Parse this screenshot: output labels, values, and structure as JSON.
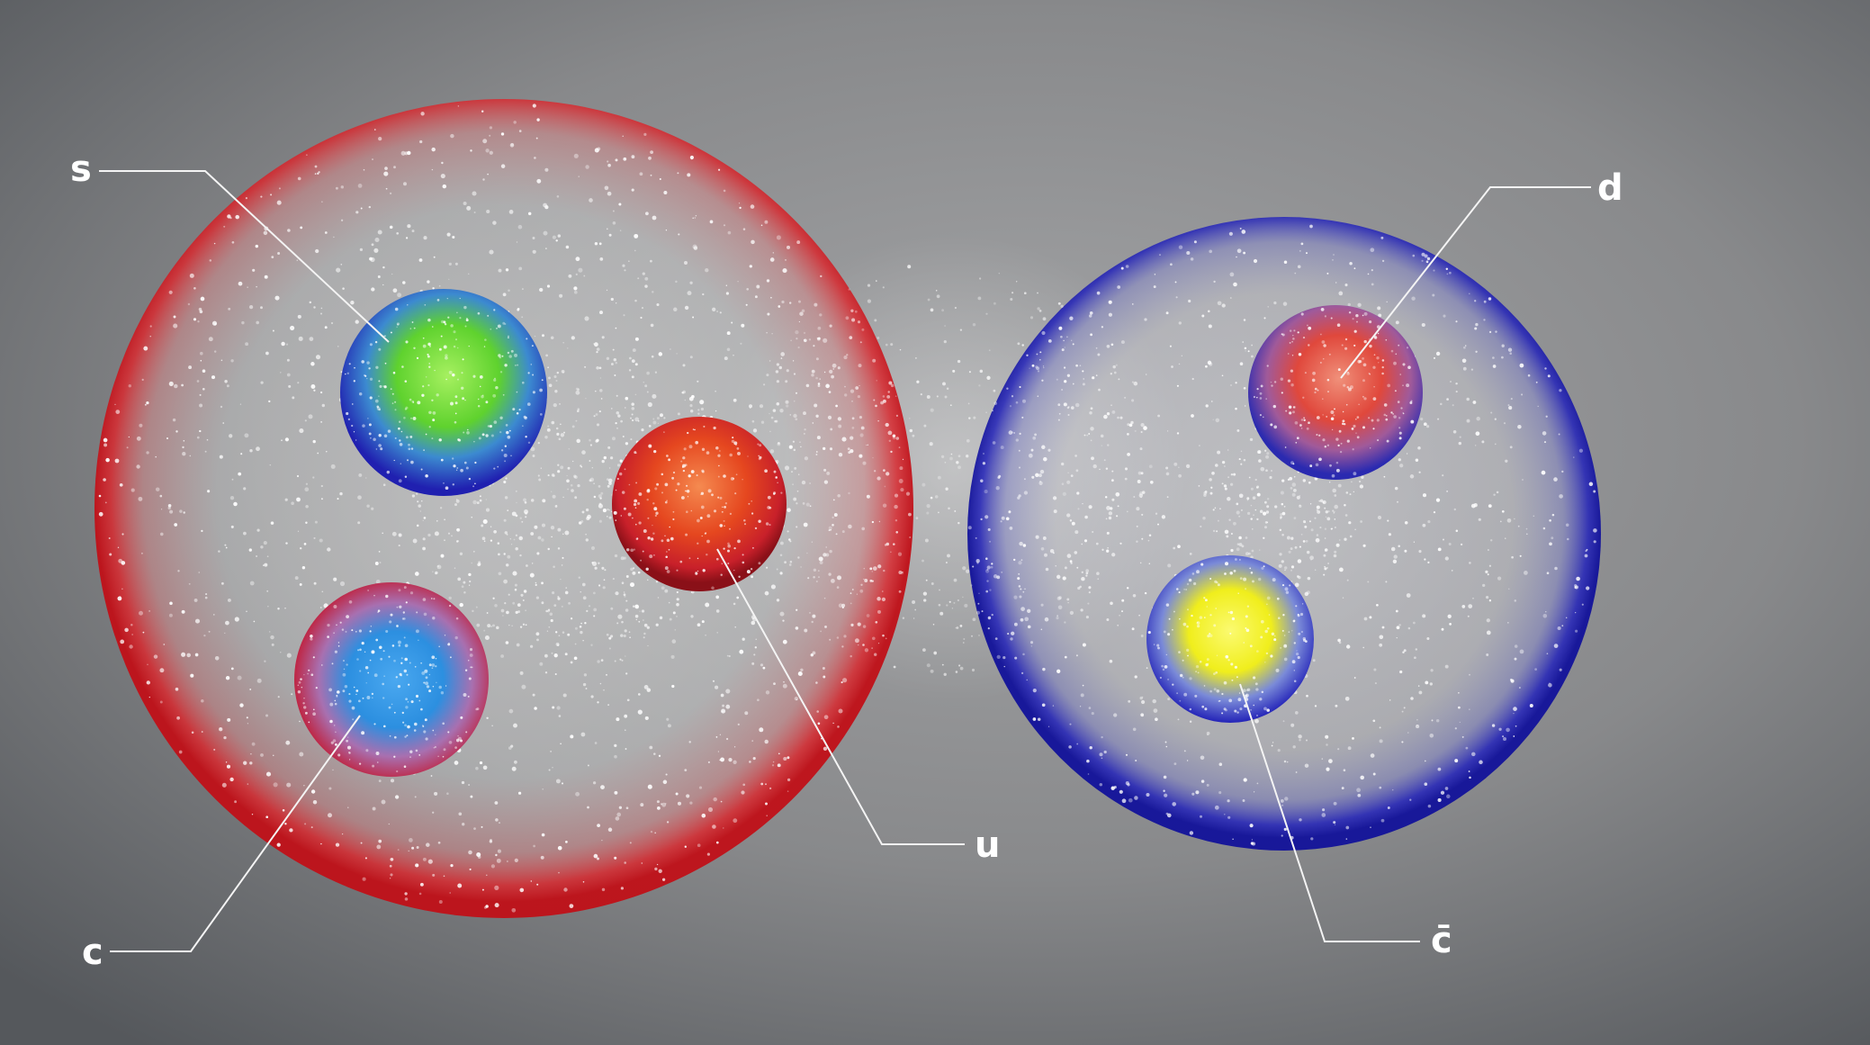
{
  "colors": {
    "background_center": "#9b9c9e",
    "background_edge": "#5c5f63",
    "left_hadron_rim": "#e0141c",
    "right_hadron_rim": "#1a1aa8",
    "quark_s_core": "#5fd22e",
    "quark_s_rim": "#2424b8",
    "quark_u_core": "#e5471f",
    "quark_u_rim": "#b0101a",
    "quark_c_core": "#2c8fe0",
    "quark_c_rim": "#c4142a",
    "quark_d_core": "#e0483c",
    "quark_d_rim": "#2a2ab0",
    "quark_cbar_core": "#f0ee1c",
    "quark_cbar_rim": "#2424b8",
    "gluon_particles": "#ffffff"
  },
  "labels": {
    "s": "s",
    "u": "u",
    "c": "c",
    "d": "d",
    "cbar": "c̄"
  }
}
